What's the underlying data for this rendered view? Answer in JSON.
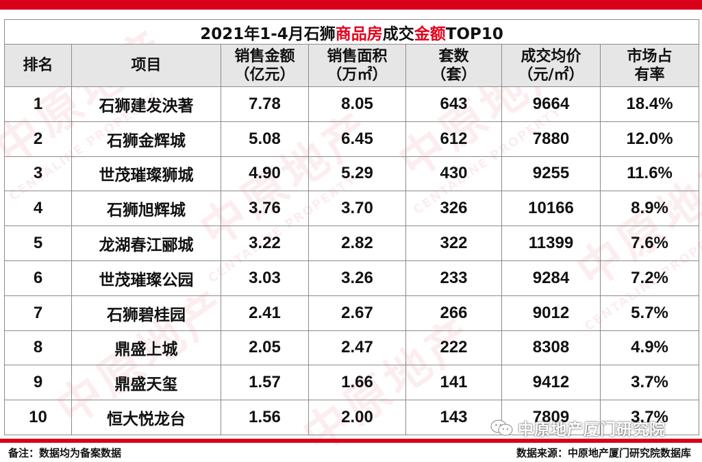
{
  "title": {
    "prefix": "2021年1-4月石狮",
    "highlight1": "商品房",
    "middle": "成交",
    "highlight2": "金额",
    "suffix": "TOP10"
  },
  "headers": [
    {
      "line1": "排名",
      "line2": ""
    },
    {
      "line1": "项目",
      "line2": ""
    },
    {
      "line1": "销售金额",
      "line2": "（亿元）"
    },
    {
      "line1": "销售面积",
      "line2": "（万㎡）"
    },
    {
      "line1": "套数",
      "line2": "（套）"
    },
    {
      "line1": "成交均价",
      "line2": "（元/㎡）"
    },
    {
      "line1": "市场占",
      "line2": "有率"
    }
  ],
  "rows": [
    {
      "rank": "1",
      "project": "石狮建发泱著",
      "amount": "7.78",
      "area": "8.05",
      "units": "643",
      "price": "9664",
      "share": "18.4%"
    },
    {
      "rank": "2",
      "project": "石狮金辉城",
      "amount": "5.08",
      "area": "6.45",
      "units": "612",
      "price": "7880",
      "share": "12.0%"
    },
    {
      "rank": "3",
      "project": "世茂璀璨狮城",
      "amount": "4.90",
      "area": "5.29",
      "units": "430",
      "price": "9255",
      "share": "11.6%"
    },
    {
      "rank": "4",
      "project": "石狮旭辉城",
      "amount": "3.76",
      "area": "3.70",
      "units": "326",
      "price": "10166",
      "share": "8.9%"
    },
    {
      "rank": "5",
      "project": "龙湖春江郦城",
      "amount": "3.22",
      "area": "2.82",
      "units": "322",
      "price": "11399",
      "share": "7.6%"
    },
    {
      "rank": "6",
      "project": "世茂璀璨公园",
      "amount": "3.03",
      "area": "3.26",
      "units": "233",
      "price": "9284",
      "share": "7.2%"
    },
    {
      "rank": "7",
      "project": "石狮碧桂园",
      "amount": "2.41",
      "area": "2.67",
      "units": "266",
      "price": "9012",
      "share": "5.7%"
    },
    {
      "rank": "8",
      "project": "鼎盛上城",
      "amount": "2.05",
      "area": "2.47",
      "units": "222",
      "price": "8308",
      "share": "4.9%"
    },
    {
      "rank": "9",
      "project": "鼎盛天玺",
      "amount": "1.57",
      "area": "1.66",
      "units": "141",
      "price": "9412",
      "share": "3.7%"
    },
    {
      "rank": "10",
      "project": "恒大悦龙台",
      "amount": "1.56",
      "area": "2.00",
      "units": "143",
      "price": "7809",
      "share": "3.7%"
    }
  ],
  "footer": {
    "note": "备注：数据均为备案数据",
    "source": "数据来源：中原地产厦门研究院数据库"
  },
  "wechat": {
    "label": "中原地产厦门研究院"
  },
  "watermark": {
    "cn": "中原地产",
    "en": "CENTALINE PROPERTY"
  },
  "colors": {
    "brand_red": "#d9001b",
    "title_highlight": "#e5001c",
    "header_bg": "#e6e6e6"
  }
}
